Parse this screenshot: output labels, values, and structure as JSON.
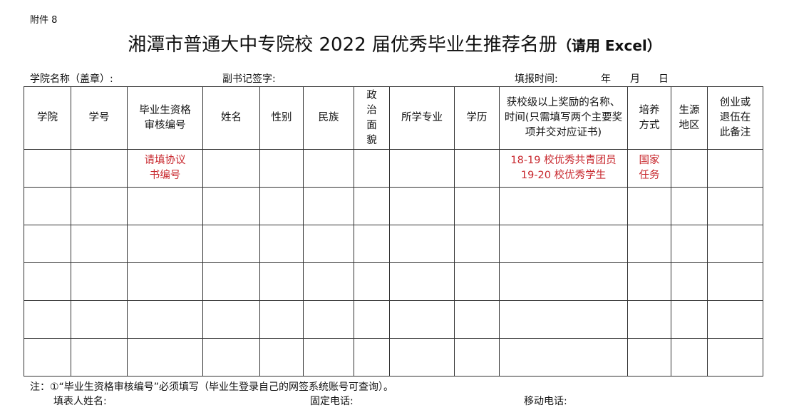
{
  "attachment_label": "附件 8",
  "title": {
    "main": "湘潭市普通大中专院校 2022 届优秀毕业生推荐名册",
    "note": "（请用 Excel）"
  },
  "meta": {
    "college": "学院名称（盖章）:",
    "secretary": "副书记签字:",
    "date_label": "填报时间:",
    "year": "年",
    "month": "月",
    "day": "日"
  },
  "table": {
    "headers": [
      "学院",
      "学号",
      "毕业生资格审核编号",
      "姓名",
      "性别",
      "民族",
      "政治面貌",
      "所学专业",
      "学历",
      "获校级以上奖励的名称、时间(只需填写两个主要奖项并交对应证书)",
      "培养方式",
      "生源地区",
      "创业或退伍在此备注"
    ],
    "example_row": {
      "qualification_no": "请填协议书编号",
      "awards": [
        "18-19 校优秀共青团员",
        "19-20 校优秀学生"
      ],
      "training_mode": "国家任务"
    },
    "example_color": "#c8282e"
  },
  "footer": {
    "note": "注：①“毕业生资格审核编号”必须填写（毕业生登录自己的网签系统账号可查询）。",
    "filler_name": "填表人姓名:",
    "landline": "固定电话:",
    "mobile": "移动电话:"
  }
}
